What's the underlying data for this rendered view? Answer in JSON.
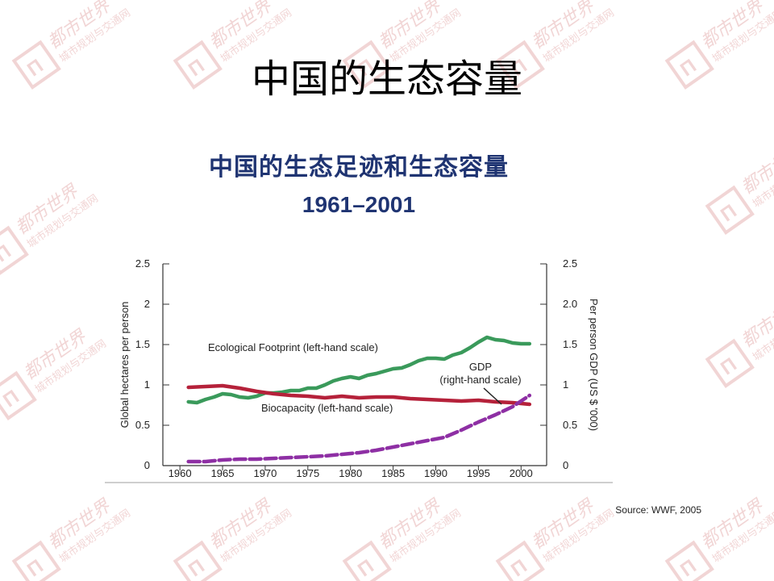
{
  "slide": {
    "title": "中国的生态容量"
  },
  "source_note": "Source: WWF, 2005",
  "colors": {
    "footprint": "#3a9a5b",
    "biocapacity": "#b5213a",
    "gdp": "#8e2fa4",
    "title_blue": "#1f3472",
    "watermark": "#e2a3a3"
  },
  "watermark": {
    "logo_text": "都市世界",
    "tagline": "城市规划与交通网"
  },
  "chart_data": {
    "type": "line",
    "title": "中国的生态足迹和生态容量",
    "subtitle": "1961–2001",
    "ylabel": "Global hectares per person",
    "y2label": "Per person GDP (US $ '000)",
    "xlim": [
      1958,
      2003
    ],
    "ylim": [
      0,
      2.5
    ],
    "y2lim": [
      0,
      2.5
    ],
    "x_ticks": [
      1960,
      1965,
      1970,
      1975,
      1980,
      1985,
      1990,
      1995,
      2000
    ],
    "y_ticks": [
      "0",
      "0.5",
      "1",
      "1.5",
      "2",
      "2.5"
    ],
    "y2_ticks": [
      "0",
      "0.5",
      "1",
      "1.5",
      "2.0",
      "2.5"
    ],
    "grid": false,
    "annotations": [
      {
        "text": "Ecological Footprint (left-hand scale)"
      },
      {
        "text": "GDP"
      },
      {
        "text": "(right-hand scale)"
      },
      {
        "text": "Biocapacity (left-hand scale)"
      }
    ],
    "series": [
      {
        "name": "Ecological Footprint (left-hand scale)",
        "axis": "left",
        "x": [
          1961,
          1962,
          1963,
          1964,
          1965,
          1966,
          1967,
          1968,
          1969,
          1970,
          1971,
          1972,
          1973,
          1974,
          1975,
          1976,
          1977,
          1978,
          1979,
          1980,
          1981,
          1982,
          1983,
          1984,
          1985,
          1986,
          1987,
          1988,
          1989,
          1990,
          1991,
          1992,
          1993,
          1994,
          1995,
          1996,
          1997,
          1998,
          1999,
          2000,
          2001
        ],
        "values": [
          0.79,
          0.78,
          0.82,
          0.85,
          0.89,
          0.88,
          0.85,
          0.84,
          0.86,
          0.9,
          0.9,
          0.91,
          0.93,
          0.93,
          0.96,
          0.96,
          1.0,
          1.05,
          1.08,
          1.1,
          1.08,
          1.12,
          1.14,
          1.17,
          1.2,
          1.21,
          1.25,
          1.3,
          1.33,
          1.33,
          1.32,
          1.37,
          1.4,
          1.46,
          1.53,
          1.59,
          1.56,
          1.55,
          1.52,
          1.51,
          1.51
        ]
      },
      {
        "name": "Biocapacity (left-hand scale)",
        "axis": "left",
        "x": [
          1961,
          1963,
          1965,
          1967,
          1969,
          1971,
          1973,
          1975,
          1977,
          1979,
          1981,
          1983,
          1985,
          1987,
          1989,
          1991,
          1993,
          1995,
          1997,
          1999,
          2001
        ],
        "values": [
          0.97,
          0.98,
          0.99,
          0.96,
          0.92,
          0.89,
          0.87,
          0.86,
          0.84,
          0.86,
          0.84,
          0.85,
          0.85,
          0.83,
          0.82,
          0.81,
          0.8,
          0.81,
          0.79,
          0.78,
          0.76
        ]
      },
      {
        "name": "GDP (right-hand scale)",
        "axis": "right",
        "x": [
          1961,
          1963,
          1965,
          1967,
          1969,
          1971,
          1973,
          1975,
          1977,
          1979,
          1981,
          1983,
          1985,
          1987,
          1989,
          1991,
          1993,
          1995,
          1997,
          1999,
          2001
        ],
        "values": [
          0.05,
          0.05,
          0.07,
          0.08,
          0.08,
          0.09,
          0.1,
          0.11,
          0.12,
          0.14,
          0.16,
          0.19,
          0.23,
          0.27,
          0.31,
          0.35,
          0.44,
          0.54,
          0.63,
          0.73,
          0.87
        ]
      }
    ]
  }
}
